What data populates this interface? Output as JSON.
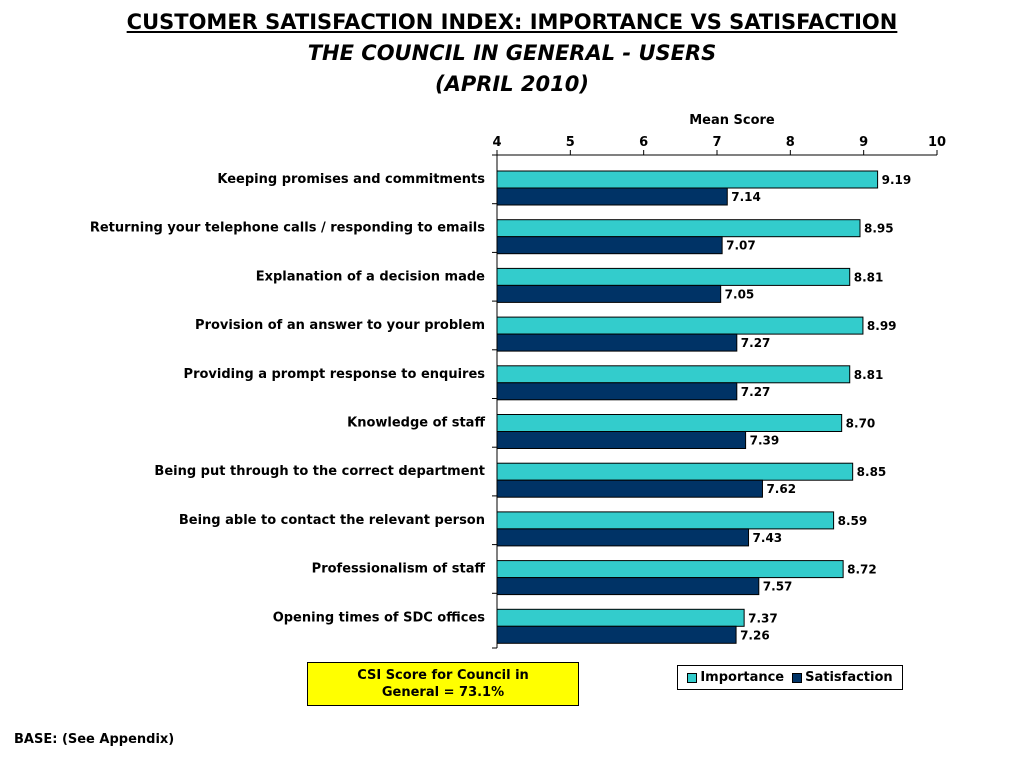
{
  "titles": {
    "line1": "CUSTOMER SATISFACTION INDEX: IMPORTANCE VS SATISFACTION",
    "line2": "THE COUNCIL IN GENERAL - USERS",
    "line3": "(APRIL 2010)"
  },
  "csi_box": {
    "line1": "CSI Score for Council in",
    "line2": "General = 73.1%"
  },
  "base_note": "BASE: (See Appendix)",
  "colors": {
    "importance": "#33CCCC",
    "satisfaction": "#003366"
  },
  "chart_data": {
    "type": "bar",
    "orientation": "horizontal",
    "title": "CUSTOMER SATISFACTION INDEX: IMPORTANCE VS SATISFACTION",
    "xlabel": "Mean Score",
    "ylabel": "",
    "xlim": [
      4,
      10
    ],
    "xticks": [
      4,
      5,
      6,
      7,
      8,
      9,
      10
    ],
    "axis_position": "top",
    "grid": false,
    "legend_position": "bottom-right",
    "categories": [
      "Keeping promises and commitments",
      "Returning your telephone calls / responding to emails",
      "Explanation of a decision made",
      "Provision of an answer to your problem",
      "Providing a prompt response to enquires",
      "Knowledge of staff",
      "Being put through to the correct department",
      "Being able to contact the relevant person",
      "Professionalism of staff",
      "Opening times of SDC offices"
    ],
    "series": [
      {
        "name": "Importance",
        "values": [
          9.19,
          8.95,
          8.81,
          8.99,
          8.81,
          8.7,
          8.85,
          8.59,
          8.72,
          7.37
        ],
        "labels": [
          "9.19",
          "8.95",
          "8.81",
          "8.99",
          "8.81",
          "8.70",
          "8.85",
          "8.59",
          "8.72",
          "7.37"
        ]
      },
      {
        "name": "Satisfaction",
        "values": [
          7.14,
          7.07,
          7.05,
          7.27,
          7.27,
          7.39,
          7.62,
          7.43,
          7.57,
          7.26
        ],
        "labels": [
          "7.14",
          "7.07",
          "7.05",
          "7.27",
          "7.27",
          "7.39",
          "7.62",
          "7.43",
          "7.57",
          "7.26"
        ]
      }
    ]
  }
}
